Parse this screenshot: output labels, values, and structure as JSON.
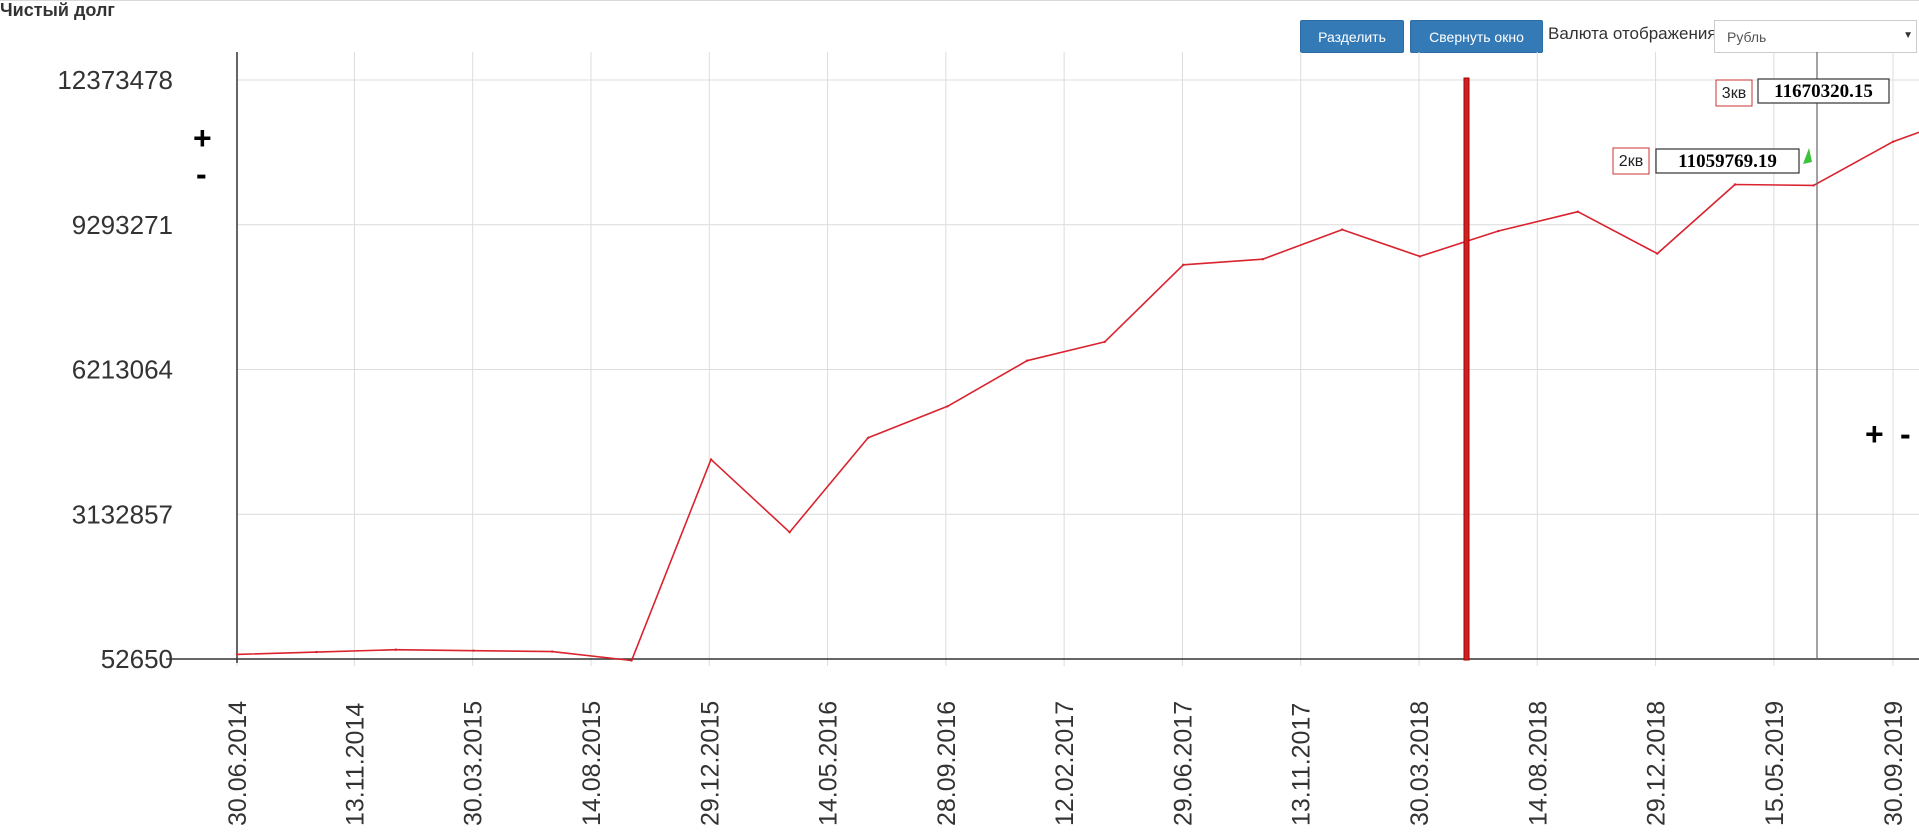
{
  "header": {
    "title": "Чистый долг",
    "split_button": "Разделить",
    "collapse_button": "Свернуть окно",
    "currency_label": "Валюта отображения",
    "currency_value": "Рубль"
  },
  "zoom_controls": {
    "y_plus": "+",
    "y_minus": "-",
    "x_plus": "+",
    "x_minus": "-"
  },
  "colors": {
    "line": "#d9232e",
    "button": "#337ab7",
    "grid": "#dcdcdc",
    "marker": "#cc2222",
    "arrow": "#3cc23c"
  },
  "chart_data": {
    "type": "line",
    "title": "Чистый долг",
    "y_ticks": [
      "12373478",
      "9293271",
      "6213064",
      "3132857",
      "52650"
    ],
    "ylim": [
      52650,
      12373478
    ],
    "x_ticks": [
      "30.06.2014",
      "13.11.2014",
      "30.03.2015",
      "14.08.2015",
      "29.12.2015",
      "14.05.2016",
      "28.09.2016",
      "12.02.2017",
      "29.06.2017",
      "13.11.2017",
      "30.03.2018",
      "14.08.2018",
      "29.12.2018",
      "15.05.2019",
      "30.09.2019"
    ],
    "xlim": [
      "30.06.2014",
      "30.09.2019"
    ],
    "grid": true,
    "series": [
      {
        "points": [
          [
            "30.06.2014",
            150000
          ],
          [
            "30.09.2014",
            200000
          ],
          [
            "31.12.2014",
            250000
          ],
          [
            "31.03.2015",
            230000
          ],
          [
            "30.06.2015",
            210000
          ],
          [
            "30.09.2015",
            20000
          ],
          [
            "31.12.2015",
            4300000
          ],
          [
            "31.03.2016",
            2750000
          ],
          [
            "30.06.2016",
            4760000
          ],
          [
            "30.09.2016",
            5430000
          ],
          [
            "31.12.2016",
            6400000
          ],
          [
            "31.03.2017",
            6800000
          ],
          [
            "30.06.2017",
            8440000
          ],
          [
            "30.09.2017",
            8560000
          ],
          [
            "31.12.2017",
            9190000
          ],
          [
            "31.03.2018",
            8620000
          ],
          [
            "30.06.2018",
            9160000
          ],
          [
            "30.09.2018",
            9570000
          ],
          [
            "31.12.2018",
            8680000
          ],
          [
            "31.03.2019",
            10150000
          ],
          [
            "30.06.2019",
            10130000
          ],
          [
            "30.09.2019",
            11059769.19
          ],
          [
            "31.12.2019",
            11670320.15
          ]
        ]
      }
    ],
    "annotations": [
      {
        "label": "2кв",
        "value": "11059769.19"
      },
      {
        "label": "3кв",
        "value": "11670320.15"
      }
    ]
  }
}
